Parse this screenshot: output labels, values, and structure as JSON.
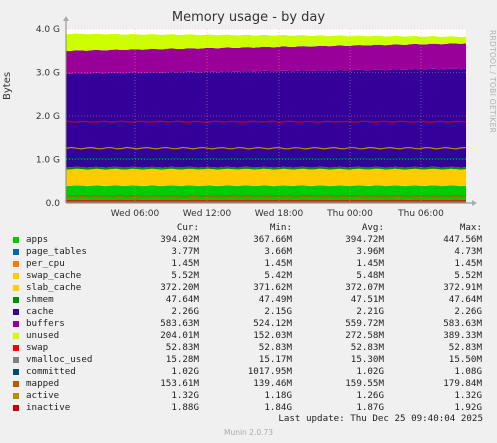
{
  "chart_data": {
    "type": "area",
    "title": "Memory usage - by day",
    "ylabel": "Bytes",
    "side_label": "RRDTOOL / TOBI OETIKER",
    "x_ticks": [
      "Wed 06:00",
      "Wed 12:00",
      "Wed 18:00",
      "Thu 00:00",
      "Thu 06:00"
    ],
    "y_ticks": [
      "0.0",
      "1.0 G",
      "2.0 G",
      "3.0 G",
      "4.0 G"
    ],
    "ylim": [
      0,
      4000000000
    ],
    "grid": true,
    "stack_series": [
      "apps",
      "page_tables",
      "per_cpu",
      "swap_cache",
      "slab_cache",
      "shmem",
      "cache",
      "buffers",
      "unused"
    ],
    "line_series": [
      "swap",
      "vmalloc_used",
      "committed",
      "mapped",
      "active",
      "inactive"
    ],
    "columns": [
      "Cur:",
      "Min:",
      "Avg:",
      "Max:"
    ],
    "series": [
      {
        "name": "apps",
        "color": "#00cc00",
        "values": [
          "394.02M",
          "367.66M",
          "394.72M",
          "447.56M"
        ]
      },
      {
        "name": "page_tables",
        "color": "#0066b3",
        "values": [
          "3.77M",
          "3.66M",
          "3.96M",
          "4.73M"
        ]
      },
      {
        "name": "per_cpu",
        "color": "#ff8000",
        "values": [
          "1.45M",
          "1.45M",
          "1.45M",
          "1.45M"
        ]
      },
      {
        "name": "swap_cache",
        "color": "#ffcc00",
        "values": [
          "5.52M",
          "5.42M",
          "5.48M",
          "5.52M"
        ]
      },
      {
        "name": "slab_cache",
        "color": "#ffcc00",
        "values": [
          "372.20M",
          "371.62M",
          "372.07M",
          "372.91M"
        ]
      },
      {
        "name": "shmem",
        "color": "#008f00",
        "values": [
          "47.64M",
          "47.49M",
          "47.51M",
          "47.64M"
        ]
      },
      {
        "name": "cache",
        "color": "#330099",
        "values": [
          "2.26G",
          "2.15G",
          "2.21G",
          "2.26G"
        ]
      },
      {
        "name": "buffers",
        "color": "#990099",
        "values": [
          "583.63M",
          "524.12M",
          "559.72M",
          "583.63M"
        ]
      },
      {
        "name": "unused",
        "color": "#ccff00",
        "values": [
          "204.01M",
          "152.03M",
          "272.58M",
          "389.33M"
        ]
      },
      {
        "name": "swap",
        "color": "#ff0000",
        "values": [
          "52.83M",
          "52.83M",
          "52.83M",
          "52.83M"
        ]
      },
      {
        "name": "vmalloc_used",
        "color": "#808080",
        "values": [
          "15.28M",
          "15.17M",
          "15.30M",
          "15.50M"
        ]
      },
      {
        "name": "committed",
        "color": "#004a6d",
        "values": [
          "1.02G",
          "1017.95M",
          "1.02G",
          "1.08G"
        ]
      },
      {
        "name": "mapped",
        "color": "#b35a00",
        "values": [
          "153.61M",
          "139.46M",
          "159.55M",
          "179.84M"
        ]
      },
      {
        "name": "active",
        "color": "#b38f00",
        "values": [
          "1.32G",
          "1.18G",
          "1.26G",
          "1.32G"
        ]
      },
      {
        "name": "inactive",
        "color": "#cc0000",
        "values": [
          "1.88G",
          "1.84G",
          "1.87G",
          "1.92G"
        ]
      }
    ]
  },
  "last_update": "Last update: Thu Dec 25 09:40:04 2025",
  "footer": "Munin 2.0.73"
}
